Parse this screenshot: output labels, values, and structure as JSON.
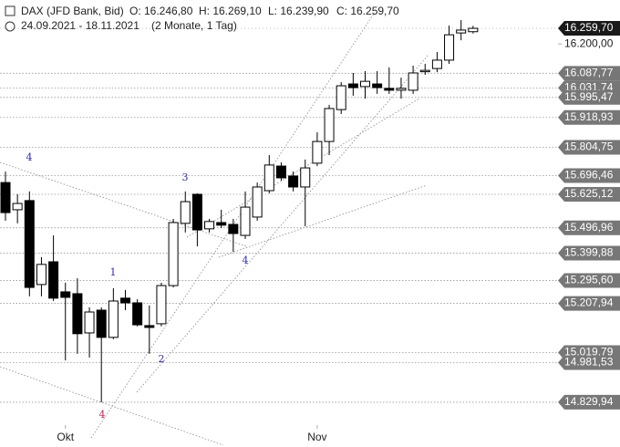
{
  "chart_data": {
    "type": "candlestick",
    "title": "DAX (JFD Bank, Bid)",
    "ohlc_header": [
      "O: 16.246,80",
      "H: 16.269,10",
      "L: 16.239,90",
      "C: 16.259,70"
    ],
    "date_range": "24.09.2021 - 18.11.2021",
    "period": "(2 Monate, 1 Tag)",
    "categories": [
      null,
      null,
      null,
      null,
      null,
      "Okt",
      null,
      null,
      null,
      null,
      null,
      null,
      null,
      null,
      null,
      null,
      null,
      null,
      null,
      null,
      null,
      null,
      null,
      null,
      null,
      null,
      "Nov",
      null,
      null,
      null,
      null,
      null,
      null,
      null,
      null,
      null,
      null,
      null,
      null,
      null
    ],
    "up_color": "#ffffff",
    "down_color": "#000000",
    "series": [
      {
        "open": [
          15670,
          15566,
          15601,
          15280,
          15367,
          15252,
          15245,
          15095,
          15182,
          15078,
          15228,
          15210,
          15123,
          15130,
          15276,
          15514,
          15625,
          15493,
          15517,
          15510,
          15468,
          15538,
          15639,
          15733,
          15695,
          15653,
          15744,
          15827,
          15949,
          16047,
          16037,
          16047,
          16030,
          16023,
          16023,
          16096,
          16106,
          16138,
          16242,
          16246.8
        ],
        "high": [
          15712,
          15625,
          15636,
          15385,
          15468,
          15287,
          15304,
          15193,
          15193,
          15266,
          15259,
          15224,
          15200,
          15287,
          15531,
          15636,
          15629,
          15531,
          15566,
          15531,
          15636,
          15670,
          15775,
          15747,
          15712,
          15758,
          15862,
          15967,
          16054,
          16089,
          16096,
          16096,
          16110,
          16071,
          16117,
          16124,
          16169,
          16270,
          16291,
          16269.1
        ],
        "low": [
          15524,
          15514,
          15235,
          15235,
          15217,
          14990,
          15015,
          15001,
          14830,
          15071,
          15182,
          15120,
          15015,
          15120,
          15269,
          15479,
          15426,
          15479,
          15496,
          15405,
          15454,
          15524,
          15629,
          15677,
          15636,
          15503,
          15733,
          15775,
          15932,
          16002,
          15991,
          16009,
          16009,
          15991,
          16009,
          16082,
          16092,
          16124,
          16214,
          16239.9
        ],
        "close": [
          15555,
          15590,
          15269,
          15357,
          15228,
          15231,
          15092,
          15175,
          15078,
          15217,
          15210,
          15126,
          15116,
          15276,
          15517,
          15597,
          15489,
          15521,
          15507,
          15475,
          15576,
          15653,
          15737,
          15688,
          15653,
          15726,
          15827,
          15953,
          16040,
          16033,
          16057,
          16033,
          16023,
          16030,
          16089,
          16099,
          16138,
          16235,
          16253,
          16259.7
        ]
      }
    ],
    "ylim": [
      14746,
      16368
    ],
    "yticks": [
      {
        "value": 16200,
        "label": "16.200,00"
      }
    ],
    "last_price": {
      "value": 16259.7,
      "label": "16.259,70"
    },
    "levels": [
      {
        "value": 16087.77,
        "label": "16.087,77"
      },
      {
        "value": 16031.74,
        "label": "16.031,74"
      },
      {
        "value": 15995.47,
        "label": "15.995,47"
      },
      {
        "value": 15918.93,
        "label": "15.918,93"
      },
      {
        "value": 15804.75,
        "label": "15.804,75"
      },
      {
        "value": 15696.46,
        "label": "15.696,46"
      },
      {
        "value": 15625.12,
        "label": "15.625,12"
      },
      {
        "value": 15496.96,
        "label": "15.496,96"
      },
      {
        "value": 15399.88,
        "label": "15.399,88"
      },
      {
        "value": 15295.6,
        "label": "15.295,60"
      },
      {
        "value": 15207.94,
        "label": "15.207,94"
      },
      {
        "value": 15019.79,
        "label": "15.019,79"
      },
      {
        "value": 14981.53,
        "label": "14.981,53"
      },
      {
        "value": 14829.94,
        "label": "14.829,94"
      }
    ],
    "annotations": [
      "4",
      "3",
      "1",
      "2",
      "4",
      "4"
    ]
  }
}
